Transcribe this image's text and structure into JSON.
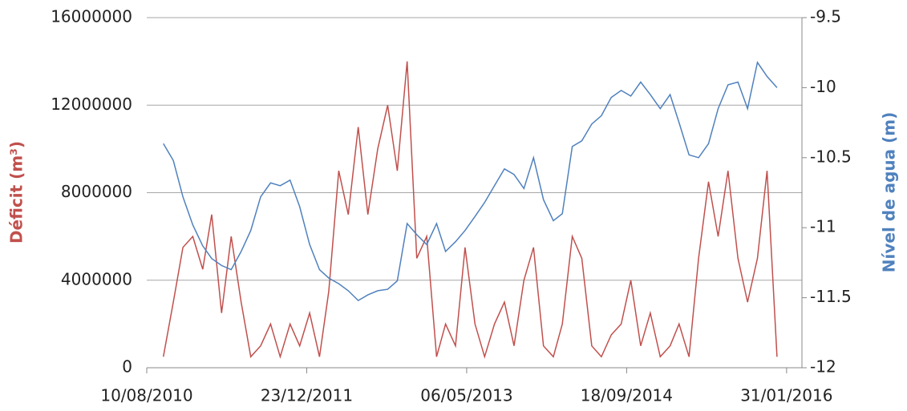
{
  "chart_data": {
    "type": "line",
    "ylabel": "Déficit (m³)",
    "y2label": "Nível de agua (m)",
    "ylabel_color": "#c0504d",
    "y2label_color": "#4f81bd",
    "grid": true,
    "xlim": [
      "10/08/2010",
      "19/03/2016"
    ],
    "xticks": [
      "10/08/2010",
      "23/12/2011",
      "06/05/2013",
      "18/09/2014",
      "31/01/2016"
    ],
    "ylim": [
      0,
      16000000
    ],
    "yticks": [
      0,
      4000000,
      8000000,
      12000000,
      16000000
    ],
    "y2lim": [
      -12,
      -9.5
    ],
    "y2ticks": [
      -12,
      -11.5,
      -11,
      -10.5,
      -10,
      -9.5
    ],
    "x": [
      "01/10/2010",
      "01/11/2010",
      "01/12/2010",
      "01/01/2011",
      "01/02/2011",
      "01/03/2011",
      "01/04/2011",
      "01/05/2011",
      "01/06/2011",
      "01/07/2011",
      "01/08/2011",
      "01/09/2011",
      "01/10/2011",
      "01/11/2011",
      "01/12/2011",
      "01/01/2012",
      "01/02/2012",
      "01/03/2012",
      "01/04/2012",
      "01/05/2012",
      "01/06/2012",
      "01/07/2012",
      "01/08/2012",
      "01/09/2012",
      "01/10/2012",
      "01/11/2012",
      "01/12/2012",
      "01/01/2013",
      "01/02/2013",
      "01/03/2013",
      "01/04/2013",
      "01/05/2013",
      "01/06/2013",
      "01/07/2013",
      "01/08/2013",
      "01/09/2013",
      "01/10/2013",
      "01/11/2013",
      "01/12/2013",
      "01/01/2014",
      "01/02/2014",
      "01/03/2014",
      "01/04/2014",
      "01/05/2014",
      "01/06/2014",
      "01/07/2014",
      "01/08/2014",
      "01/09/2014",
      "01/10/2014",
      "01/11/2014",
      "01/12/2014",
      "01/01/2015",
      "01/02/2015",
      "01/03/2015",
      "01/04/2015",
      "01/05/2015",
      "01/06/2015",
      "01/07/2015",
      "01/08/2015",
      "01/09/2015",
      "01/10/2015",
      "01/11/2015",
      "01/12/2015",
      "01/01/2016"
    ],
    "series": [
      {
        "color": "#c0504d",
        "axis": "y",
        "values": [
          500000,
          3000000,
          5500000,
          6000000,
          4500000,
          7000000,
          2500000,
          6000000,
          3000000,
          500000,
          1000000,
          2000000,
          500000,
          2000000,
          1000000,
          2500000,
          500000,
          3500000,
          9000000,
          7000000,
          11000000,
          7000000,
          10000000,
          12000000,
          9000000,
          14000000,
          5000000,
          6000000,
          500000,
          2000000,
          1000000,
          5500000,
          2000000,
          500000,
          2000000,
          3000000,
          1000000,
          4000000,
          5500000,
          1000000,
          500000,
          2000000,
          6000000,
          5000000,
          1000000,
          500000,
          1500000,
          2000000,
          4000000,
          1000000,
          2500000,
          500000,
          1000000,
          2000000,
          500000,
          5000000,
          8500000,
          6000000,
          9000000,
          5000000,
          3000000,
          5000000,
          9000000,
          500000
        ]
      },
      {
        "color": "#4f81bd",
        "axis": "y2",
        "values": [
          -10.4,
          -10.52,
          -10.78,
          -10.98,
          -11.13,
          -11.22,
          -11.27,
          -11.3,
          -11.17,
          -11.02,
          -10.78,
          -10.68,
          -10.7,
          -10.66,
          -10.85,
          -11.12,
          -11.3,
          -11.36,
          -11.4,
          -11.45,
          -11.52,
          -11.48,
          -11.45,
          -11.44,
          -11.38,
          -10.97,
          -11.05,
          -11.12,
          -10.97,
          -11.17,
          -11.1,
          -11.02,
          -10.92,
          -10.82,
          -10.7,
          -10.58,
          -10.62,
          -10.72,
          -10.5,
          -10.8,
          -10.95,
          -10.9,
          -10.42,
          -10.38,
          -10.26,
          -10.2,
          -10.07,
          -10.02,
          -10.06,
          -9.96,
          -10.05,
          -10.15,
          -10.05,
          -10.25,
          -10.48,
          -10.5,
          -10.4,
          -10.15,
          -9.98,
          -9.96,
          -10.15,
          -9.82,
          -9.92,
          -10.0
        ]
      }
    ]
  }
}
